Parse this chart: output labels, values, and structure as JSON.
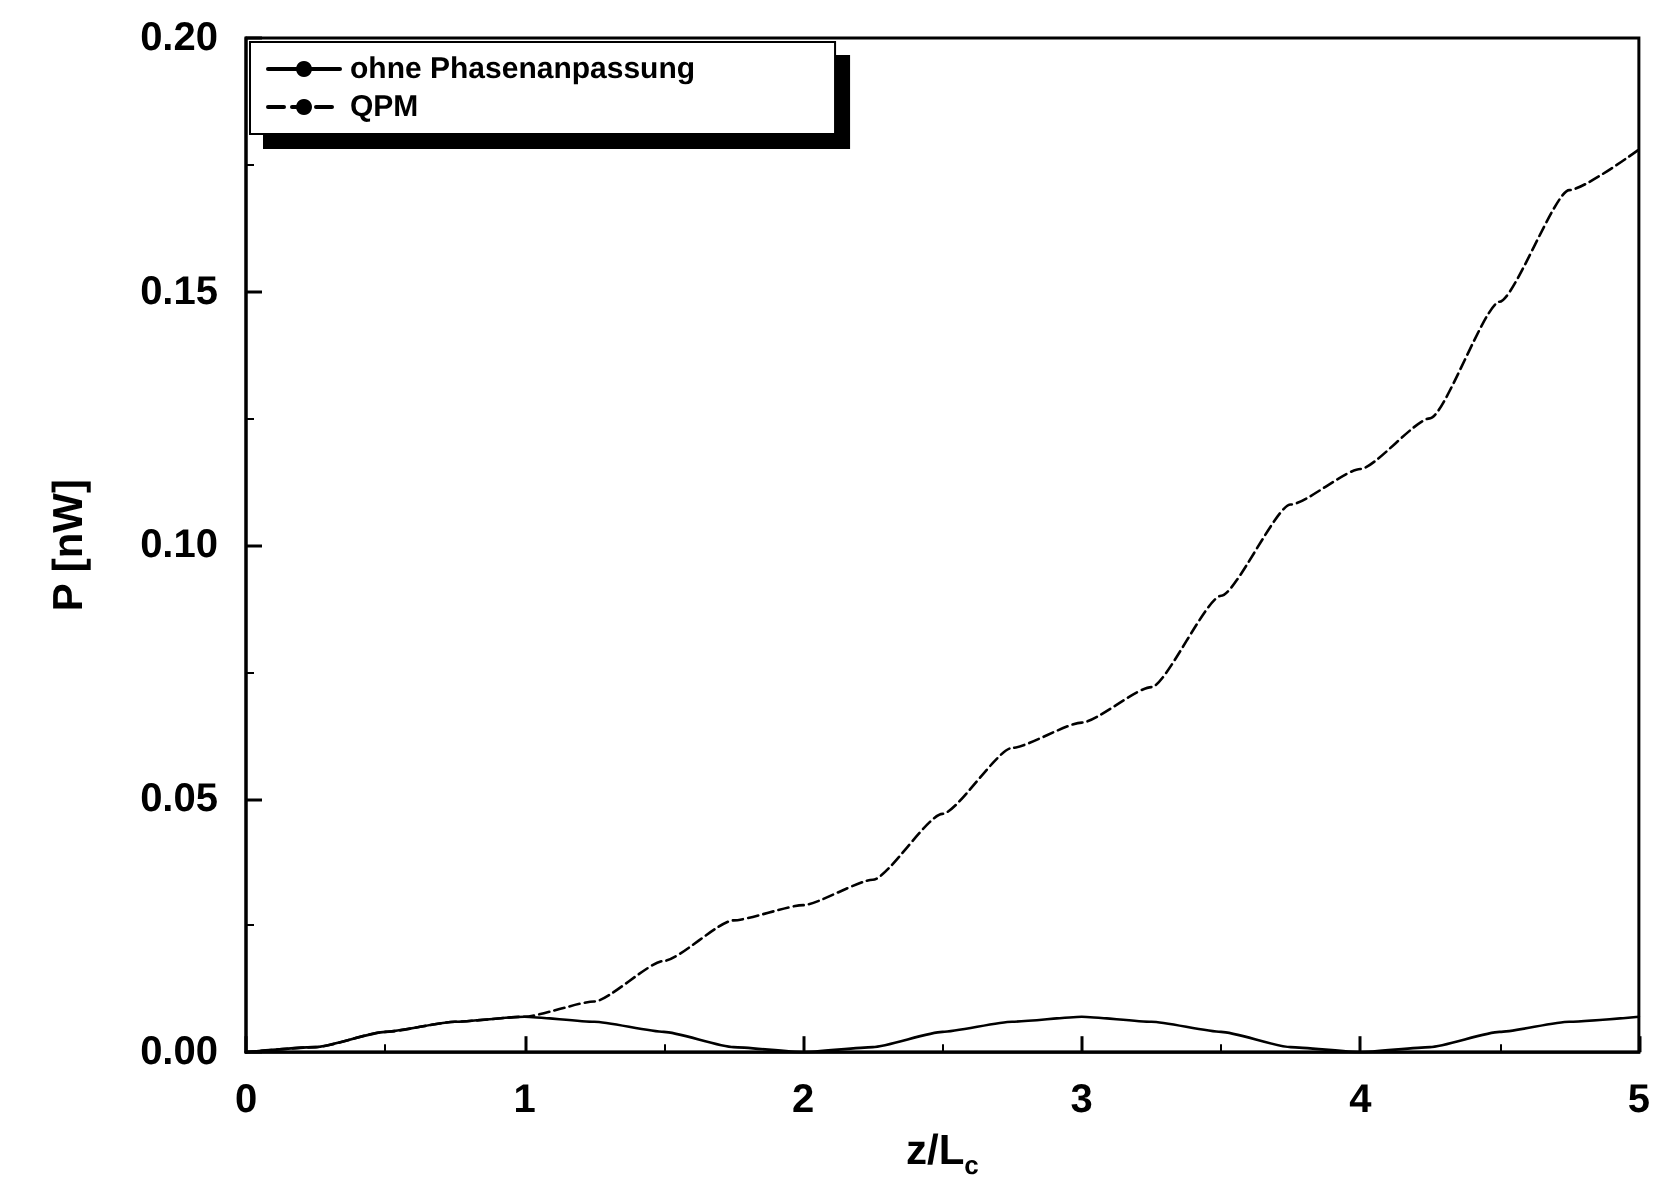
{
  "chart_data": {
    "type": "line",
    "xlabel": "z/L$_{c}$",
    "ylabel": "P [nW]",
    "x": [
      0,
      0.25,
      0.5,
      0.75,
      1,
      1.25,
      1.5,
      1.75,
      2,
      2.25,
      2.5,
      2.75,
      3,
      3.25,
      3.5,
      3.75,
      4,
      4.25,
      4.5,
      4.75,
      5
    ],
    "series": [
      {
        "name": "ohne Phasenanpassung",
        "color": "#000000",
        "line_style": "solid",
        "values": [
          0,
          0.001,
          0.004,
          0.006,
          0.007,
          0.006,
          0.004,
          0.001,
          0,
          0.001,
          0.004,
          0.006,
          0.007,
          0.006,
          0.004,
          0.001,
          0,
          0.001,
          0.004,
          0.006,
          0.007
        ]
      },
      {
        "name": "QPM",
        "color": "#000000",
        "line_style": "dashed",
        "values": [
          0,
          0.001,
          0.004,
          0.006,
          0.007,
          0.01,
          0.018,
          0.026,
          0.029,
          0.034,
          0.047,
          0.06,
          0.065,
          0.072,
          0.09,
          0.108,
          0.115,
          0.125,
          0.148,
          0.17,
          0.178
        ]
      }
    ],
    "xlim": [
      0,
      5
    ],
    "xticks": [
      0,
      1,
      2,
      3,
      4,
      5
    ],
    "ylim": [
      0,
      0.2
    ],
    "yticks": [
      {
        "value": 0,
        "label": "0.00"
      },
      0.05,
      {
        "value": 0.1,
        "label": "0.10"
      },
      0.15,
      {
        "value": 0.2,
        "label": "0.20"
      }
    ],
    "legend": "top left",
    "grid": false,
    "marker": "none"
  }
}
